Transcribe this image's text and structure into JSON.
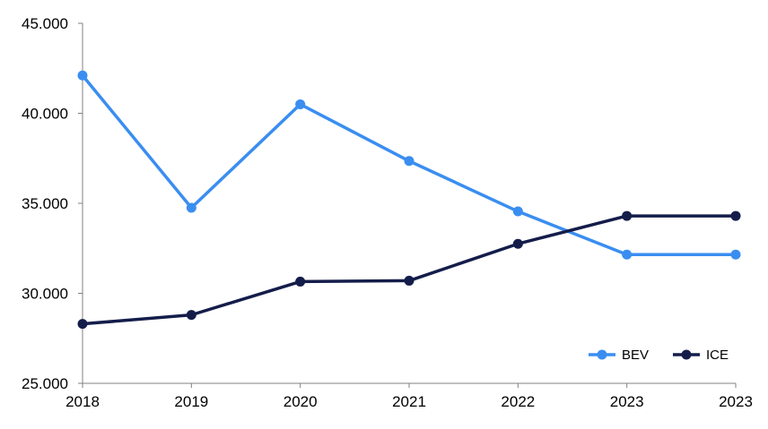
{
  "chart_data": {
    "type": "line",
    "categories": [
      "2018",
      "2019",
      "2020",
      "2021",
      "2022",
      "2023",
      "2023"
    ],
    "series": [
      {
        "name": "BEV",
        "color": "#3a8ef0",
        "values": [
          42100,
          34750,
          40500,
          37350,
          34550,
          32150,
          32150
        ]
      },
      {
        "name": "ICE",
        "color": "#141d4a",
        "values": [
          28300,
          28800,
          30650,
          30700,
          32750,
          34300,
          34300
        ]
      }
    ],
    "y_ticks": [
      "25.000",
      "30.000",
      "35.000",
      "40.000",
      "45.000"
    ],
    "y_tick_values": [
      25000,
      30000,
      35000,
      40000,
      45000
    ],
    "ylim": [
      25000,
      45000
    ],
    "title": "",
    "xlabel": "",
    "ylabel": "",
    "grid": false,
    "legend_position": "bottom-right"
  }
}
